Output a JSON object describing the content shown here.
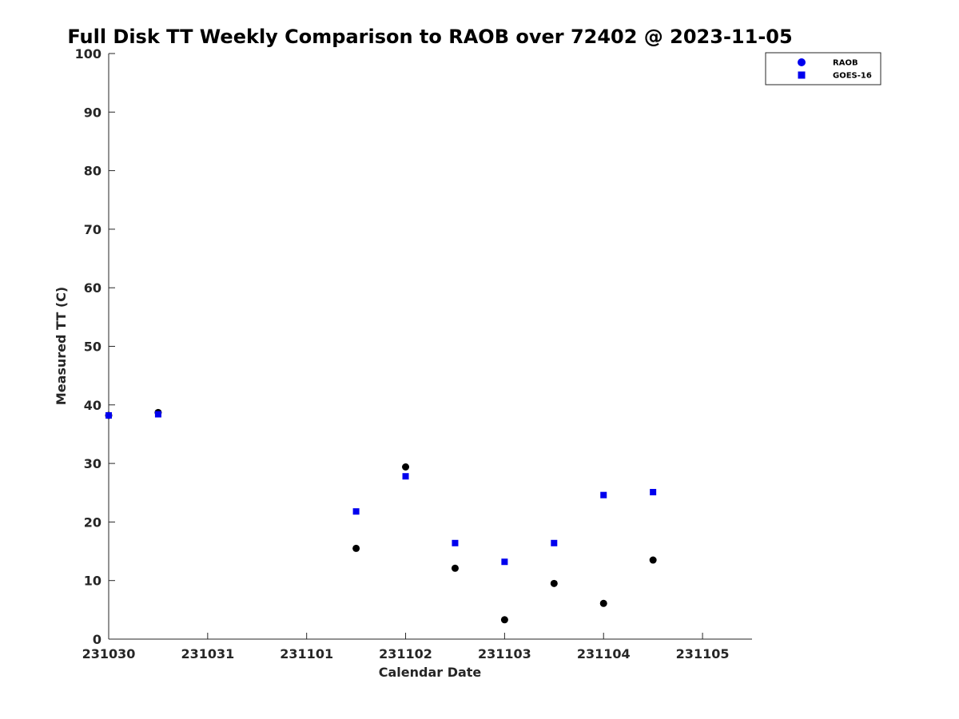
{
  "chart_data": {
    "type": "scatter",
    "title": "Full Disk TT Weekly Comparison to RAOB over 72402 @ 2023-11-05",
    "xlabel": "Calendar Date",
    "ylabel": "Measured TT (C)",
    "x_ticks": [
      0,
      1,
      2,
      3,
      4,
      5,
      6
    ],
    "x_tick_labels": [
      "231030",
      "231031",
      "231101",
      "231102",
      "231103",
      "231104",
      "231105"
    ],
    "xlim": [
      0,
      6.5
    ],
    "y_ticks": [
      0,
      10,
      20,
      30,
      40,
      50,
      60,
      70,
      80,
      90,
      100
    ],
    "y_tick_labels": [
      "0",
      "10",
      "20",
      "30",
      "40",
      "50",
      "60",
      "70",
      "80",
      "90",
      "100"
    ],
    "ylim": [
      0,
      100
    ],
    "grid": false,
    "legend_position": "top-right",
    "legend": [
      "RAOB",
      "GOES-16"
    ],
    "series": [
      {
        "name": "RAOB",
        "marker": "circle",
        "color": "#000000",
        "points": [
          {
            "x": 0,
            "y": 38.2
          },
          {
            "x": 0.5,
            "y": 38.7
          },
          {
            "x": 2.5,
            "y": 15.5
          },
          {
            "x": 3,
            "y": 29.4
          },
          {
            "x": 3.5,
            "y": 12.1
          },
          {
            "x": 4,
            "y": 3.3
          },
          {
            "x": 4.5,
            "y": 9.5
          },
          {
            "x": 5,
            "y": 6.1
          },
          {
            "x": 5.5,
            "y": 13.5
          }
        ]
      },
      {
        "name": "GOES-16",
        "marker": "square",
        "color": "#0000ee",
        "points": [
          {
            "x": 0,
            "y": 38.2
          },
          {
            "x": 0.5,
            "y": 38.4
          },
          {
            "x": 2.5,
            "y": 21.8
          },
          {
            "x": 3,
            "y": 27.8
          },
          {
            "x": 3.5,
            "y": 16.4
          },
          {
            "x": 4,
            "y": 13.2
          },
          {
            "x": 4.5,
            "y": 16.4
          },
          {
            "x": 5,
            "y": 24.6
          },
          {
            "x": 5.5,
            "y": 25.1
          }
        ]
      }
    ]
  },
  "legend_colors": {
    "RAOB": "#0000ee",
    "GOES-16": "#0000ee"
  }
}
